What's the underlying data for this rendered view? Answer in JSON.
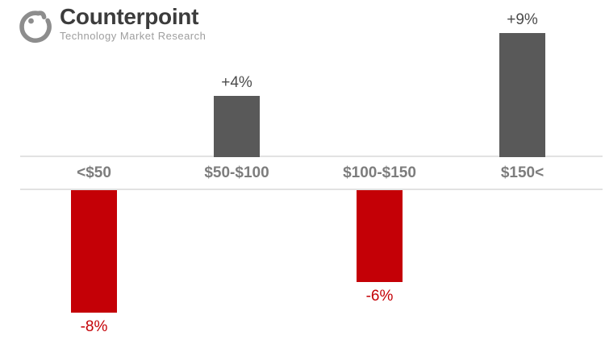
{
  "logo": {
    "title": "Counterpoint",
    "subtitle": "Technology Market Research",
    "icon": "counterpoint-circle-mark"
  },
  "chart_data": {
    "type": "bar",
    "categories": [
      "<$50",
      "$50-$100",
      "$100-$150",
      "$150<"
    ],
    "values": [
      -8,
      4,
      -6,
      9
    ],
    "data_labels": [
      "-8%",
      "+4%",
      "-6%",
      "+9%"
    ],
    "title": "",
    "xlabel": "",
    "ylabel": "",
    "ylim": [
      -9,
      9
    ],
    "grid": "off",
    "legend": "none",
    "colors": {
      "positive_bar": "#595959",
      "negative_bar": "#c40006",
      "positive_label": "#4c4c4c",
      "negative_label": "#c40006",
      "category_label": "#7d7d7d",
      "axis_line": "#e2e2e2",
      "logo_title": "#3c3c3c",
      "logo_subtitle": "#9e9e9e",
      "logo_mark": "#8d8d8d"
    }
  }
}
